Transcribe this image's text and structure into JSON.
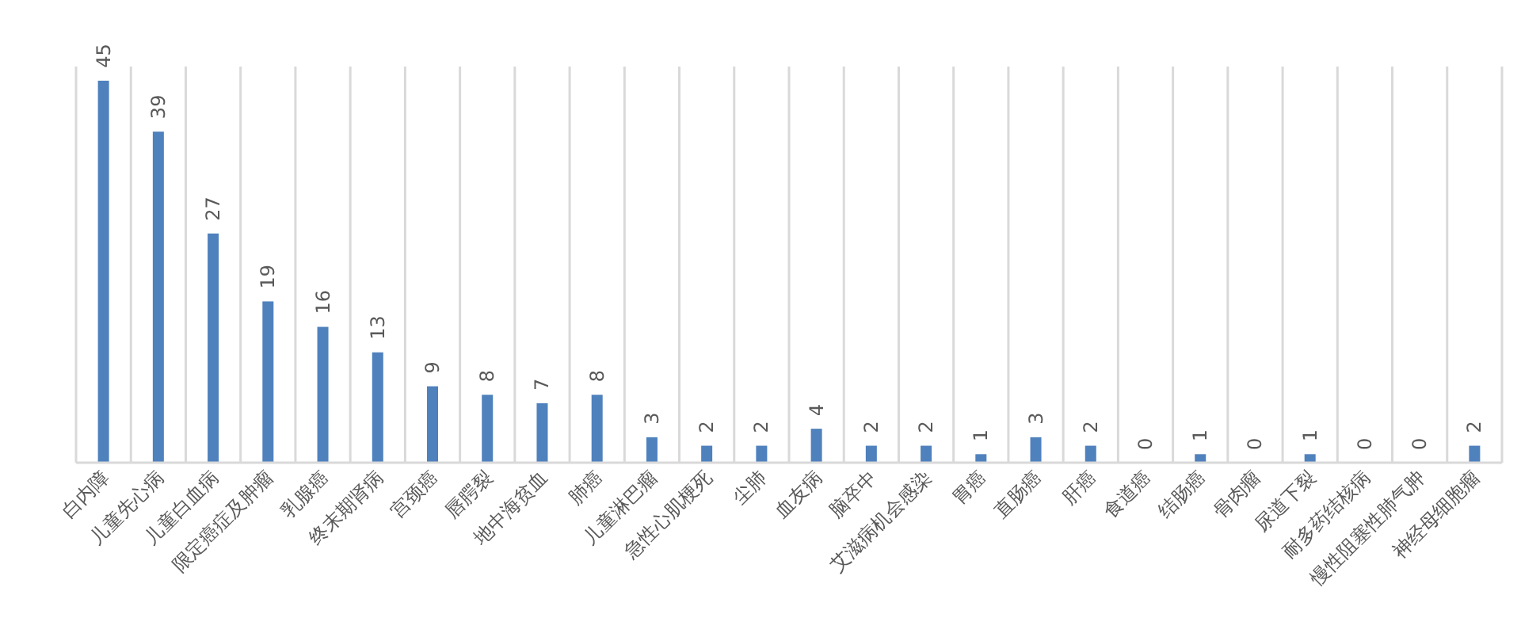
{
  "chart_data": {
    "type": "bar",
    "categories": [
      "白内障",
      "儿童先心病",
      "儿童白血病",
      "限定癌症及肿瘤",
      "乳腺癌",
      "终末期肾病",
      "宫颈癌",
      "唇腭裂",
      "地中海贫血",
      "肺癌",
      "儿童淋巴瘤",
      "急性心肌梗死",
      "尘肺",
      "血友病",
      "脑卒中",
      "艾滋病机会感染",
      "胃癌",
      "直肠癌",
      "肝癌",
      "食道癌",
      "结肠癌",
      "骨肉瘤",
      "尿道下裂",
      "耐多药结核病",
      "慢性阻塞性肺气肿",
      "神经母细胞瘤"
    ],
    "values": [
      45,
      39,
      27,
      19,
      16,
      13,
      9,
      8,
      7,
      8,
      3,
      2,
      2,
      4,
      2,
      2,
      1,
      3,
      2,
      0,
      1,
      0,
      1,
      0,
      0,
      2
    ],
    "color": "#4f81bd",
    "data_labels": true,
    "grid": "x"
  }
}
